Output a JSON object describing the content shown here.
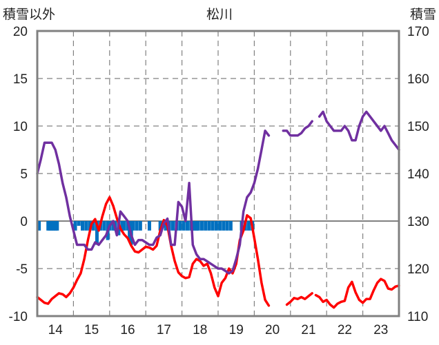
{
  "chart_data": {
    "type": "line",
    "title": "松川",
    "y_left_label": "積雪以外",
    "y_right_label": "積雪",
    "ylim_left": [
      -10,
      20
    ],
    "ylim_right": [
      110,
      170
    ],
    "y_left_ticks": [
      "20",
      "15",
      "10",
      "5",
      "0",
      "-5",
      "-10"
    ],
    "y_right_ticks": [
      "170",
      "160",
      "150",
      "140",
      "130",
      "120",
      "110"
    ],
    "x_ticks": [
      "14",
      "15",
      "16",
      "17",
      "18",
      "19",
      "20",
      "21",
      "22",
      "23"
    ],
    "grid": true,
    "colors": {
      "red": "#ff0000",
      "purple": "#7030a0",
      "blue": "#0070c0",
      "frame": "#808080"
    },
    "series": [
      {
        "color": "red",
        "axis": "left",
        "x": [
          13.5,
          13.6,
          13.7,
          13.8,
          13.9,
          14.0,
          14.1,
          14.2,
          14.3,
          14.4,
          14.5,
          14.6,
          14.7,
          14.8,
          14.9,
          15.0,
          15.1,
          15.2,
          15.3,
          15.4,
          15.5,
          15.6,
          15.7,
          15.8,
          15.9,
          16.0,
          16.1,
          16.2,
          16.3,
          16.4,
          16.5,
          16.6,
          16.7,
          16.8,
          16.9,
          17.0,
          17.1,
          17.2,
          17.3,
          17.4,
          17.5,
          17.6,
          17.7,
          17.8,
          17.9,
          18.0,
          18.1,
          18.2,
          18.3,
          18.4,
          18.5,
          18.6,
          18.7,
          18.8,
          18.9,
          19.0,
          19.1,
          19.2,
          19.3,
          19.4,
          19.5,
          19.6,
          19.7,
          19.8,
          19.9
        ],
        "y": [
          -8,
          -8.3,
          -8.6,
          -8.7,
          -8.2,
          -7.9,
          -7.6,
          -7.7,
          -8.0,
          -7.6,
          -7.0,
          -6.2,
          -5.5,
          -4.0,
          -2.0,
          -0.3,
          0.2,
          -1.0,
          0.5,
          1.8,
          2.5,
          1.6,
          0.3,
          -0.8,
          -1.4,
          -1.8,
          -2.6,
          -3.2,
          -3.3,
          -3.0,
          -2.7,
          -2.8,
          -3.0,
          -2.6,
          -1.0,
          0.1,
          -0.5,
          -2.6,
          -4.2,
          -5.4,
          -5.8,
          -6.0,
          -5.9,
          -4.5,
          -4.0,
          -4.2,
          -4.7,
          -4.5,
          -5.5,
          -7.0,
          -7.9,
          -6.5,
          -6.0,
          -5.0,
          -5.5,
          -4.5,
          -2.0,
          -1.0,
          0.6,
          0.3,
          -1.8,
          -4.0,
          -6.5,
          -8.3,
          -8.9
        ]
      },
      {
        "color": "red",
        "axis": "left",
        "x": [
          20.4,
          20.5,
          20.6,
          20.7,
          20.8,
          20.9,
          21.0,
          21.1
        ],
        "y": [
          -8.8,
          -8.5,
          -8.1,
          -8.2,
          -8.0,
          -8.2,
          -7.9,
          -7.6
        ]
      },
      {
        "color": "red",
        "axis": "left",
        "x": [
          21.2,
          21.3,
          21.4,
          21.5,
          21.6,
          21.7,
          21.8,
          21.9,
          22.0,
          22.1,
          22.2,
          22.3,
          22.4,
          22.5,
          22.6,
          22.7,
          22.8,
          22.9,
          23.0,
          23.1,
          23.2,
          23.3,
          23.4,
          23.5
        ],
        "y": [
          -7.8,
          -8.0,
          -8.5,
          -8.3,
          -8.8,
          -9.1,
          -8.7,
          -8.5,
          -8.4,
          -7.0,
          -6.4,
          -7.5,
          -8.3,
          -8.6,
          -8.2,
          -8.2,
          -7.3,
          -6.5,
          -6.1,
          -6.3,
          -7.1,
          -7.2,
          -6.9,
          -6.8
        ]
      },
      {
        "color": "purple",
        "axis": "right",
        "x": [
          13.5,
          13.6,
          13.7,
          13.8,
          13.9,
          14.0,
          14.1,
          14.2,
          14.3,
          14.4,
          14.5,
          14.6,
          14.7,
          14.8,
          14.9,
          15.0,
          15.1,
          15.2,
          15.3,
          15.4,
          15.5,
          15.6,
          15.7,
          15.8,
          15.9,
          16.0,
          16.1,
          16.2,
          16.3,
          16.4,
          16.5,
          16.6,
          16.7,
          16.8,
          16.9,
          17.0,
          17.1,
          17.2,
          17.3,
          17.4,
          17.5,
          17.6,
          17.7,
          17.8,
          17.9,
          18.0,
          18.1,
          18.2,
          18.3,
          18.4,
          18.5,
          18.6,
          18.7,
          18.8,
          18.9,
          19.0,
          19.1,
          19.2,
          19.3,
          19.4,
          19.5,
          19.6,
          19.7,
          19.8,
          19.9
        ],
        "y": [
          140,
          143,
          146.5,
          146.5,
          146.5,
          145,
          142,
          138,
          135,
          131,
          128,
          125,
          125,
          125,
          124,
          124,
          125.5,
          125,
          126,
          127,
          129,
          130,
          127,
          132,
          131,
          130,
          127,
          125,
          126,
          126,
          125.5,
          125,
          125,
          126.5,
          127,
          129.5,
          130.5,
          125,
          125,
          134,
          133,
          130,
          138,
          125,
          123,
          122,
          122,
          121.5,
          121,
          120.5,
          120,
          120,
          119.5,
          119,
          119.5,
          122,
          125,
          132,
          135,
          136,
          138,
          141,
          145,
          149,
          148
        ]
      },
      {
        "color": "purple",
        "axis": "right",
        "x": [
          20.3,
          20.4,
          20.5,
          20.6,
          20.7,
          20.8,
          20.9,
          21.0,
          21.1
        ],
        "y": [
          149,
          149,
          148,
          148,
          148,
          148.5,
          149.5,
          150,
          151
        ]
      },
      {
        "color": "purple",
        "axis": "right",
        "x": [
          21.3,
          21.4,
          21.5,
          21.6,
          21.7,
          21.8,
          21.9,
          22.0,
          22.1,
          22.2,
          22.3,
          22.4,
          22.5,
          22.6,
          22.7,
          22.8,
          22.9,
          23.0,
          23.1,
          23.2,
          23.3,
          23.4,
          23.5
        ],
        "y": [
          152,
          153,
          151,
          150,
          149,
          149,
          149,
          150,
          149,
          147,
          147,
          150,
          152,
          153,
          152,
          151,
          150,
          149,
          150,
          148.5,
          147,
          146,
          145
        ]
      }
    ],
    "bars": {
      "color": "blue",
      "axis": "left",
      "x": [
        13.55,
        13.8,
        13.85,
        13.9,
        13.95,
        14.0,
        14.05,
        14.55,
        14.65,
        14.75,
        14.85,
        14.95,
        15.05,
        15.15,
        15.25,
        15.35,
        15.45,
        15.5,
        15.6,
        15.65,
        15.75,
        15.85,
        15.9,
        16.0,
        16.05,
        16.1,
        16.15,
        16.25,
        16.35,
        16.6,
        16.9,
        17.05,
        17.15,
        17.25,
        17.35,
        17.45,
        17.55,
        17.65,
        17.75,
        17.8,
        17.85,
        17.9,
        17.95,
        18.05,
        18.15,
        18.25,
        18.35,
        18.45,
        18.55,
        18.65,
        18.75,
        18.85,
        19.15,
        19.25,
        19.35,
        19.45
      ],
      "y": [
        -1.0,
        -1.0,
        -1.0,
        -1.0,
        -1.0,
        -1.0,
        -1.0,
        -1.0,
        -0.5,
        -1.0,
        -1.0,
        -1.0,
        -1.0,
        -2.5,
        -1.0,
        -1.0,
        -2.0,
        -1.0,
        -1.0,
        -1.0,
        -1.5,
        -1.0,
        -1.0,
        -1.0,
        -2.0,
        -2.5,
        -1.0,
        -1.0,
        -1.0,
        -1.0,
        -1.0,
        -1.0,
        -1.0,
        -1.0,
        -1.0,
        -1.0,
        -1.0,
        -1.0,
        -1.0,
        -1.0,
        -1.0,
        -1.0,
        -1.0,
        -1.0,
        -1.0,
        -1.0,
        -1.0,
        -1.0,
        -1.0,
        -1.0,
        -1.0,
        -1.0,
        -1.0,
        -1.0,
        -1.0,
        -1.0
      ]
    }
  }
}
